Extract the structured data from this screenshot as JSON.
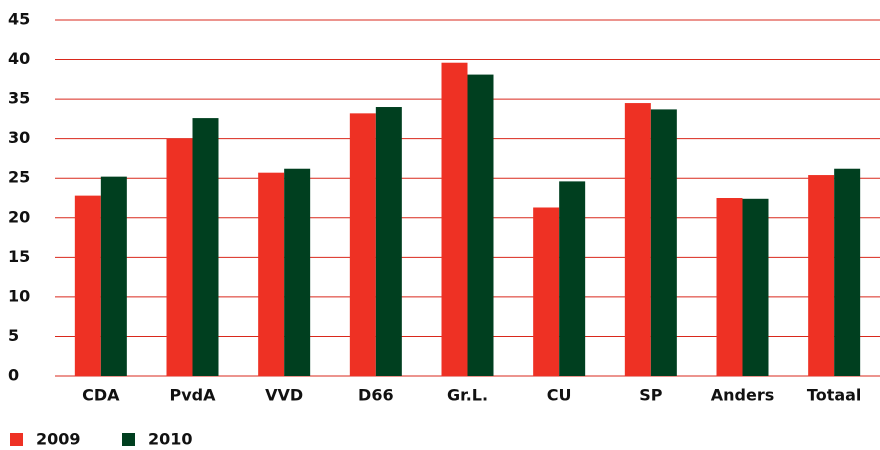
{
  "chart_data": {
    "type": "bar",
    "categories": [
      "CDA",
      "PvdA",
      "VVD",
      "D66",
      "Gr.L.",
      "CU",
      "SP",
      "Anders",
      "Totaal"
    ],
    "series": [
      {
        "name": "2009",
        "color": "#ee3124",
        "values": [
          22.8,
          30.0,
          25.7,
          33.2,
          39.6,
          21.3,
          34.5,
          22.5,
          25.4
        ]
      },
      {
        "name": "2010",
        "color": "#003f1f",
        "values": [
          25.2,
          32.6,
          26.2,
          34.0,
          38.1,
          24.6,
          33.7,
          22.4,
          26.2
        ]
      }
    ],
    "ylim": [
      0,
      45
    ],
    "yticks": [
      0,
      5,
      10,
      15,
      20,
      25,
      30,
      35,
      40,
      45
    ],
    "grid": true,
    "legend": "bottom-left"
  }
}
